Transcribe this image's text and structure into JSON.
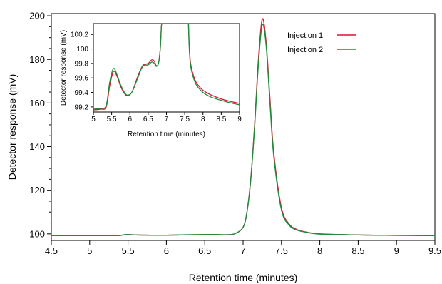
{
  "chart_data": [
    {
      "type": "line",
      "xlabel": "Retention time (minutes)",
      "ylabel": "Detector response (mV)",
      "xlim": [
        4.5,
        9.5
      ],
      "ylim": [
        97,
        201
      ],
      "xticks": [
        "4.5",
        "5",
        "5.5",
        "6",
        "6.5",
        "7",
        "7.5",
        "8",
        "8.5",
        "9",
        "9.5"
      ],
      "yticks": [
        "100",
        "120",
        "140",
        "160",
        "180",
        "200"
      ],
      "grid": false,
      "legend": "top-right inside main plot",
      "series": [
        {
          "name": "Injection 1",
          "color": "#e0102f",
          "x": [
            4.5,
            5.0,
            5.35,
            5.45,
            5.5,
            5.6,
            5.8,
            6.0,
            6.3,
            6.6,
            6.8,
            6.9,
            7.0,
            7.05,
            7.1,
            7.15,
            7.2,
            7.25,
            7.3,
            7.35,
            7.4,
            7.5,
            7.6,
            7.7,
            7.8,
            8.0,
            8.5,
            9.0,
            9.5
          ],
          "y": [
            99.2,
            99.2,
            99.2,
            99.6,
            99.7,
            99.5,
            99.4,
            99.4,
            99.6,
            99.7,
            99.6,
            100.2,
            103.0,
            110.0,
            125.0,
            150.0,
            180.0,
            198.5,
            188.0,
            162.0,
            137.0,
            112.0,
            104.5,
            102.0,
            101.0,
            100.0,
            99.5,
            99.3,
            99.2
          ]
        },
        {
          "name": "Injection 2",
          "color": "#1e8c3c",
          "x": [
            4.5,
            5.0,
            5.35,
            5.45,
            5.5,
            5.6,
            5.8,
            6.0,
            6.3,
            6.6,
            6.8,
            6.9,
            7.0,
            7.05,
            7.1,
            7.15,
            7.2,
            7.25,
            7.3,
            7.35,
            7.4,
            7.5,
            7.6,
            7.7,
            7.8,
            8.0,
            8.5,
            9.0,
            9.5
          ],
          "y": [
            99.2,
            99.2,
            99.2,
            99.6,
            99.7,
            99.5,
            99.4,
            99.4,
            99.6,
            99.7,
            99.6,
            100.2,
            103.0,
            110.0,
            125.0,
            149.0,
            178.0,
            196.0,
            186.5,
            160.0,
            135.5,
            111.0,
            104.0,
            101.8,
            100.9,
            99.9,
            99.5,
            99.3,
            99.2
          ]
        }
      ]
    },
    {
      "type": "line",
      "xlabel": "Retention time (minutes)",
      "ylabel": "Detector response (mV)",
      "xlim": [
        5,
        9
      ],
      "ylim": [
        99.13,
        100.35
      ],
      "xticks": [
        "5",
        "5.5",
        "6",
        "6.5",
        "7",
        "7.5",
        "8",
        "8.5",
        "9"
      ],
      "yticks": [
        "99.2",
        "99.4",
        "99.6",
        "99.8",
        "100",
        "100.2"
      ],
      "grid": false,
      "placement": "inset, top-left of main plot",
      "series": [
        {
          "name": "Injection 1",
          "color": "#e0102f",
          "x": [
            5.0,
            5.2,
            5.35,
            5.45,
            5.55,
            5.65,
            5.75,
            5.9,
            6.05,
            6.2,
            6.35,
            6.5,
            6.6,
            6.67,
            6.72,
            6.78,
            6.83,
            6.86,
            6.88,
            6.89,
            7.59,
            7.6,
            7.62,
            7.65,
            7.7,
            7.8,
            7.9,
            8.0,
            8.2,
            8.5,
            8.8,
            9.0
          ],
          "y": [
            99.16,
            99.17,
            99.2,
            99.5,
            99.69,
            99.62,
            99.48,
            99.36,
            99.4,
            99.6,
            99.77,
            99.8,
            99.85,
            99.83,
            99.77,
            99.8,
            100.0,
            100.3,
            100.38,
            100.4,
            100.4,
            100.38,
            100.1,
            99.85,
            99.7,
            99.55,
            99.48,
            99.43,
            99.37,
            99.31,
            99.27,
            99.25
          ]
        },
        {
          "name": "Injection 2",
          "color": "#1e8c3c",
          "x": [
            5.0,
            5.2,
            5.35,
            5.45,
            5.55,
            5.65,
            5.75,
            5.9,
            6.05,
            6.2,
            6.35,
            6.5,
            6.6,
            6.67,
            6.72,
            6.78,
            6.83,
            6.86,
            6.88,
            6.89,
            7.59,
            7.6,
            7.62,
            7.65,
            7.7,
            7.8,
            7.9,
            8.0,
            8.2,
            8.5,
            8.8,
            9.0
          ],
          "y": [
            99.17,
            99.18,
            99.22,
            99.55,
            99.73,
            99.64,
            99.5,
            99.37,
            99.4,
            99.58,
            99.76,
            99.78,
            99.82,
            99.8,
            99.76,
            99.8,
            100.0,
            100.3,
            100.38,
            100.4,
            100.4,
            100.38,
            100.05,
            99.82,
            99.67,
            99.52,
            99.45,
            99.4,
            99.34,
            99.29,
            99.25,
            99.23
          ]
        }
      ]
    }
  ]
}
